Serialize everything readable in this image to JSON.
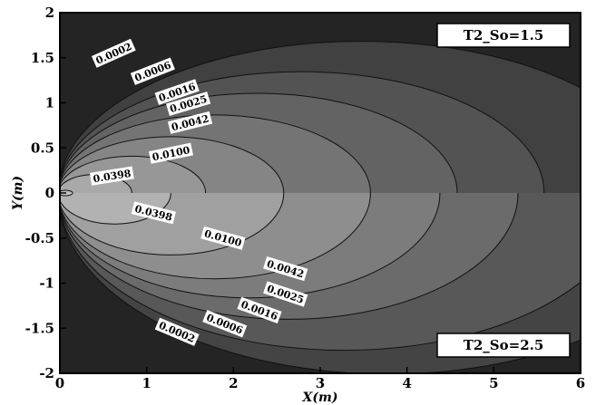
{
  "chart_data": {
    "type": "contour",
    "xlabel": "X(m)",
    "ylabel": "Y(m)",
    "xlim": [
      0,
      6
    ],
    "ylim": [
      -2,
      2
    ],
    "x_ticks": [
      0,
      1,
      2,
      3,
      4,
      5,
      6
    ],
    "y_ticks": [
      2,
      1.5,
      1,
      0.5,
      0,
      -0.5,
      -1,
      -1.5,
      -2
    ],
    "panels": [
      {
        "name": "T2_So=1.5",
        "half": "upper",
        "contour_levels": [
          "0.0002",
          "0.0006",
          "0.0016",
          "0.0025",
          "0.0042",
          "0.0100",
          "0.0398"
        ],
        "level_extents_x": [
          7.0,
          5.6,
          4.6,
          3.6,
          2.6,
          1.7,
          0.85
        ],
        "label_points": [
          {
            "text": "0.0002",
            "x": 0.62,
            "y": 1.55
          },
          {
            "text": "0.0006",
            "x": 1.07,
            "y": 1.35
          },
          {
            "text": "0.0016",
            "x": 1.35,
            "y": 1.12
          },
          {
            "text": "0.0025",
            "x": 1.48,
            "y": 0.99
          },
          {
            "text": "0.0042",
            "x": 1.5,
            "y": 0.78
          },
          {
            "text": "0.0100",
            "x": 1.28,
            "y": 0.44
          },
          {
            "text": "0.0398",
            "x": 0.6,
            "y": 0.19
          }
        ]
      },
      {
        "name": "T2_So=2.5",
        "half": "lower",
        "contour_levels": [
          "0.0002",
          "0.0006",
          "0.0016",
          "0.0025",
          "0.0042",
          "0.0100",
          "0.0398"
        ],
        "level_extents_x": [
          7.6,
          6.6,
          5.3,
          4.4,
          3.6,
          2.6,
          1.3
        ],
        "label_points": [
          {
            "text": "0.0398",
            "x": 1.08,
            "y": -0.22
          },
          {
            "text": "0.0100",
            "x": 1.88,
            "y": -0.5
          },
          {
            "text": "0.0042",
            "x": 2.6,
            "y": -0.84
          },
          {
            "text": "0.0025",
            "x": 2.6,
            "y": -1.12
          },
          {
            "text": "0.0016",
            "x": 2.3,
            "y": -1.3
          },
          {
            "text": "0.0006",
            "x": 1.9,
            "y": -1.45
          },
          {
            "text": "0.0002",
            "x": 1.35,
            "y": -1.54
          }
        ]
      }
    ],
    "colors": {
      "background_far": "#242424",
      "level_fills": [
        "#414141",
        "#535353",
        "#636363",
        "#747474",
        "#858585",
        "#979797",
        "#a9a9a9",
        "#bdbdbd"
      ],
      "lower_level_fills": [
        "#444444",
        "#585858",
        "#6b6b6b",
        "#7c7c7c",
        "#8e8e8e",
        "#a0a0a0",
        "#b2b2b2",
        "#c6c6c6"
      ],
      "contour_line": "#111111"
    }
  }
}
